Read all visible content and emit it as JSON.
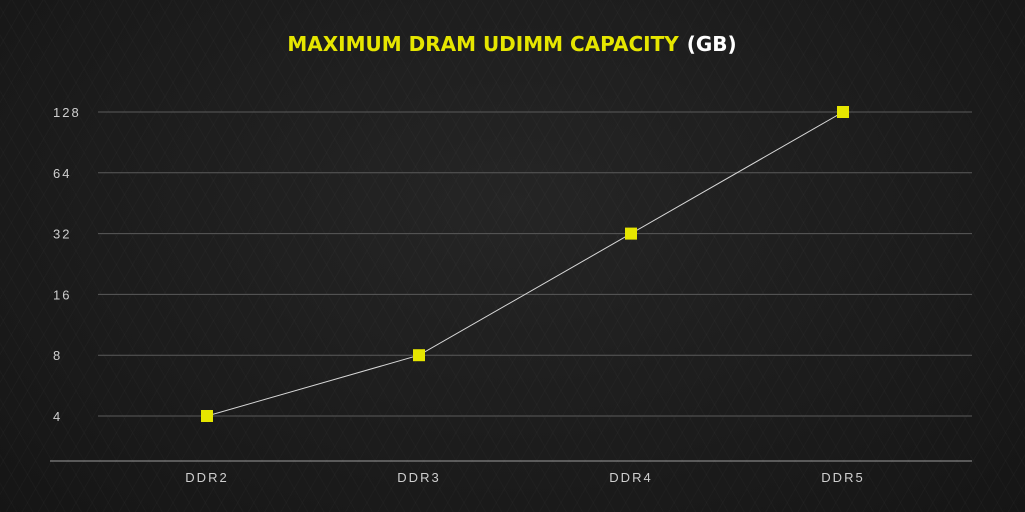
{
  "colors": {
    "background": "#1b1b1b",
    "accent": "#e6e600",
    "title_unit": "#ffffff",
    "grid": "#5a5a5a",
    "axis": "#9a9a9a",
    "line": "#d8d8d8",
    "tick_text": "#cfcfcf"
  },
  "chart_data": {
    "type": "line",
    "title": "MAXIMUM DRAM UDIMM CAPACITY",
    "title_unit": "(GB)",
    "xlabel": "",
    "ylabel": "",
    "y_scale": "log2",
    "ylim": [
      4,
      128
    ],
    "y_ticks": [
      4,
      8,
      16,
      32,
      64,
      128
    ],
    "categories": [
      "DDR2",
      "DDR3",
      "DDR4",
      "DDR5"
    ],
    "series": [
      {
        "values": [
          4,
          8,
          32,
          128
        ],
        "marker": "square"
      }
    ],
    "grid": true,
    "legend": "none"
  }
}
